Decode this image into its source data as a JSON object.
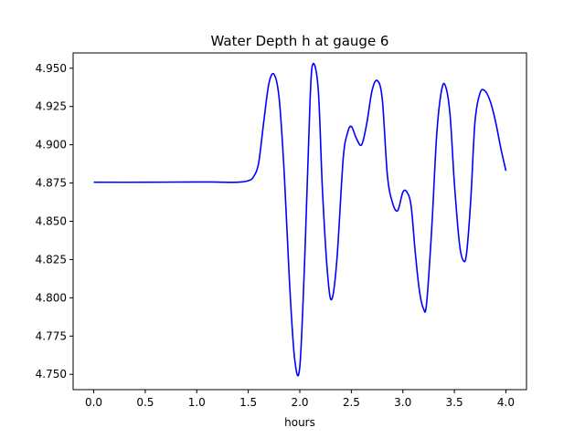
{
  "chart_data": {
    "type": "line",
    "title": "Water Depth h at gauge 6",
    "xlabel": "hours",
    "ylabel": "",
    "xlim": [
      -0.2,
      4.2
    ],
    "ylim": [
      4.74,
      4.96
    ],
    "x_ticks": [
      0.0,
      0.5,
      1.0,
      1.5,
      2.0,
      2.5,
      3.0,
      3.5,
      4.0
    ],
    "x_tick_labels": [
      "0.0",
      "0.5",
      "1.0",
      "1.5",
      "2.0",
      "2.5",
      "3.0",
      "3.5",
      "4.0"
    ],
    "y_ticks": [
      4.75,
      4.775,
      4.8,
      4.825,
      4.85,
      4.875,
      4.9,
      4.925,
      4.95
    ],
    "y_tick_labels": [
      "4.750",
      "4.775",
      "4.800",
      "4.825",
      "4.850",
      "4.875",
      "4.900",
      "4.925",
      "4.950"
    ],
    "grid": false,
    "series": [
      {
        "color": "#0000ff",
        "x": [
          0.0,
          0.5,
          1.0,
          1.2,
          1.4,
          1.5,
          1.55,
          1.6,
          1.65,
          1.7,
          1.75,
          1.8,
          1.85,
          1.9,
          1.95,
          2.0,
          2.05,
          2.1,
          2.13,
          2.18,
          2.22,
          2.27,
          2.31,
          2.36,
          2.42,
          2.46,
          2.5,
          2.55,
          2.6,
          2.65,
          2.7,
          2.75,
          2.8,
          2.85,
          2.9,
          2.95,
          3.0,
          3.04,
          3.08,
          3.12,
          3.16,
          3.2,
          3.23,
          3.28,
          3.33,
          3.38,
          3.42,
          3.46,
          3.5,
          3.55,
          3.59,
          3.62,
          3.66,
          3.7,
          3.75,
          3.8,
          3.85,
          3.9,
          3.95,
          4.0
        ],
        "y": [
          4.8755,
          4.8755,
          4.8757,
          4.8756,
          4.8755,
          4.8765,
          4.879,
          4.888,
          4.915,
          4.94,
          4.946,
          4.93,
          4.88,
          4.81,
          4.76,
          4.755,
          4.83,
          4.93,
          4.953,
          4.935,
          4.87,
          4.815,
          4.799,
          4.825,
          4.89,
          4.907,
          4.912,
          4.904,
          4.9,
          4.914,
          4.935,
          4.942,
          4.93,
          4.88,
          4.862,
          4.857,
          4.869,
          4.869,
          4.86,
          4.83,
          4.805,
          4.793,
          4.796,
          4.845,
          4.908,
          4.937,
          4.937,
          4.918,
          4.875,
          4.835,
          4.824,
          4.83,
          4.865,
          4.915,
          4.934,
          4.935,
          4.928,
          4.915,
          4.898,
          4.883
        ]
      }
    ]
  }
}
